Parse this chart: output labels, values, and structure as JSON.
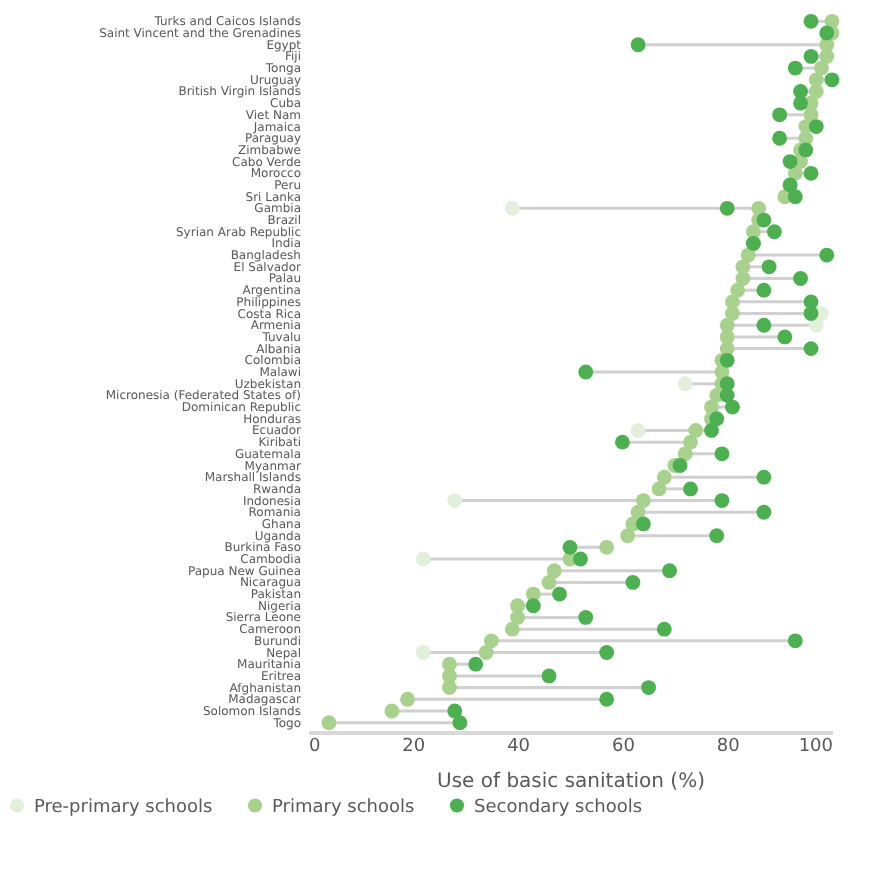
{
  "chart_data": {
    "type": "scatter",
    "orientation": "horizontal",
    "xlabel": "Use of basic sanitation (%)",
    "categories": [
      "Turks and Caicos Islands",
      "Saint Vincent and the Grenadines",
      "Egypt",
      "Fiji",
      "Tonga",
      "Uruguay",
      "British Virgin Islands",
      "Cuba",
      "Viet Nam",
      "Jamaica",
      "Paraguay",
      "Zimbabwe",
      "Cabo Verde",
      "Morocco",
      "Peru",
      "Sri Lanka",
      "Gambia",
      "Brazil",
      "Syrian Arab Republic",
      "India",
      "Bangladesh",
      "El Salvador",
      "Palau",
      "Argentina",
      "Philippines",
      "Costa Rica",
      "Armenia",
      "Tuvalu",
      "Albania",
      "Colombia",
      "Malawi",
      "Uzbekistan",
      "Micronesia (Federated States of)",
      "Dominican Republic",
      "Honduras",
      "Ecuador",
      "Kiribati",
      "Guatemala",
      "Myanmar",
      "Marshall Islands",
      "Rwanda",
      "Indonesia",
      "Romania",
      "Ghana",
      "Uganda",
      "Burkina Faso",
      "Cambodia",
      "Papua New Guinea",
      "Nicaragua",
      "Pakistan",
      "Nigeria",
      "Sierra Leone",
      "Cameroon",
      "Burundi",
      "Nepal",
      "Mauritania",
      "Eritrea",
      "Afghanistan",
      "Madagascar",
      "Solomon Islands",
      "Togo"
    ],
    "series": [
      {
        "name": "Pre-primary schools",
        "color": "#e2efda",
        "values": [
          null,
          null,
          null,
          null,
          null,
          null,
          null,
          null,
          null,
          null,
          null,
          null,
          null,
          null,
          null,
          null,
          39,
          null,
          null,
          null,
          null,
          null,
          null,
          null,
          null,
          98,
          97,
          null,
          null,
          null,
          null,
          72,
          null,
          null,
          null,
          63,
          null,
          null,
          null,
          null,
          null,
          28,
          null,
          null,
          null,
          null,
          22,
          null,
          null,
          null,
          null,
          null,
          null,
          null,
          22,
          null,
          null,
          null,
          null,
          null,
          null
        ]
      },
      {
        "name": "Primary schools",
        "color": "#a9d18e",
        "values": [
          100,
          100,
          99,
          99,
          98,
          97,
          97,
          96,
          96,
          95,
          95,
          94,
          94,
          93,
          92,
          91,
          86,
          86,
          85,
          85,
          84,
          83,
          83,
          82,
          81,
          81,
          80,
          80,
          80,
          79,
          79,
          79,
          78,
          77,
          77,
          74,
          73,
          72,
          70,
          68,
          67,
          64,
          63,
          62,
          61,
          57,
          50,
          47,
          46,
          43,
          40,
          40,
          39,
          35,
          34,
          27,
          27,
          27,
          19,
          16,
          4
        ]
      },
      {
        "name": "Secondary schools",
        "color": "#4cb050",
        "values": [
          96,
          99,
          63,
          96,
          93,
          100,
          94,
          94,
          90,
          97,
          90,
          95,
          92,
          96,
          92,
          93,
          80,
          87,
          89,
          85,
          99,
          88,
          94,
          87,
          96,
          96,
          87,
          91,
          96,
          80,
          53,
          80,
          80,
          81,
          78,
          77,
          60,
          79,
          71,
          87,
          73,
          79,
          87,
          64,
          78,
          50,
          52,
          69,
          62,
          48,
          43,
          53,
          68,
          93,
          57,
          32,
          46,
          65,
          57,
          28,
          29
        ]
      }
    ],
    "xlim": [
      0,
      100
    ],
    "xticks": [
      0,
      20,
      40,
      60,
      80,
      100
    ],
    "grid": false,
    "legend": "bottom",
    "marker": "circle"
  }
}
